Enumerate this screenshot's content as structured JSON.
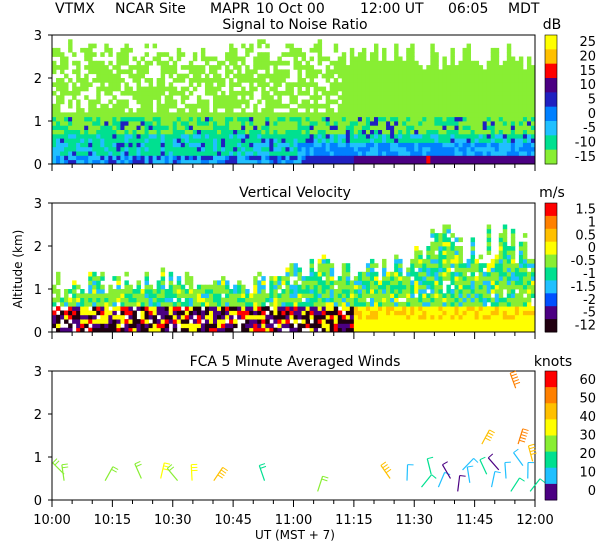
{
  "header": {
    "station": "VTMX",
    "site": "NCAR Site",
    "instrument": "MAPR",
    "date": "10 Oct 00",
    "time_ut": "12:00 UT",
    "time_local": "06:05",
    "tz": "MDT"
  },
  "chart_data": [
    {
      "type": "heatmap",
      "title": "Signal to Noise Ratio",
      "ylabel": "",
      "ylim": [
        0,
        3
      ],
      "yticks": [
        "0",
        "1",
        "2",
        "3"
      ],
      "unit": "dB",
      "colorbar_labels": [
        "25",
        "20",
        "15",
        "10",
        "5",
        "0",
        "-5",
        "-10",
        "-15"
      ],
      "colors": [
        "#ffff00",
        "#ffc000",
        "#ff0000",
        "#4b0082",
        "#2020c0",
        "#0080ff",
        "#20c0ff",
        "#00e090",
        "#88ee33"
      ]
    },
    {
      "type": "heatmap",
      "title": "Vertical Velocity",
      "ylabel": "Altitude (km)",
      "ylim": [
        0,
        3
      ],
      "yticks": [
        "0",
        "1",
        "2",
        "3"
      ],
      "unit": "m/s",
      "colorbar_labels": [
        "1.5",
        "1",
        "0.5",
        "0",
        "-0.5",
        "-1",
        "-1.5",
        "-2",
        "-5",
        "-12"
      ],
      "colors": [
        "#ff0000",
        "#ff8000",
        "#ffc000",
        "#ffff00",
        "#88ee33",
        "#00e090",
        "#20c0ff",
        "#0050ff",
        "#4b0082",
        "#200010"
      ]
    },
    {
      "type": "scatter",
      "title": "FCA 5 Minute Averaged Winds",
      "ylabel": "",
      "ylim": [
        0,
        3
      ],
      "yticks": [
        "0",
        "1",
        "2",
        "3"
      ],
      "unit": "knots",
      "colorbar_labels": [
        "60",
        "50",
        "40",
        "30",
        "20",
        "10",
        "0"
      ],
      "colors": [
        "#ff0000",
        "#ff8000",
        "#ffc000",
        "#ffff00",
        "#88ee33",
        "#00e090",
        "#20c0ff",
        "#4b0082"
      ],
      "x_ticks": [
        "10:00",
        "10:15",
        "10:30",
        "10:45",
        "11:00",
        "11:15",
        "11:30",
        "11:45",
        "12:00"
      ],
      "xlabel": "UT  (MST + 7)",
      "barbs": [
        {
          "t": 10.05,
          "alt": 0.6,
          "speed": 22
        },
        {
          "t": 10.05,
          "alt": 0.45,
          "speed": 24
        },
        {
          "t": 10.22,
          "alt": 0.45,
          "speed": 22
        },
        {
          "t": 10.37,
          "alt": 0.5,
          "speed": 22
        },
        {
          "t": 10.45,
          "alt": 0.5,
          "speed": 26
        },
        {
          "t": 10.52,
          "alt": 0.45,
          "speed": 24
        },
        {
          "t": 10.58,
          "alt": 0.45,
          "speed": 30
        },
        {
          "t": 10.67,
          "alt": 0.45,
          "speed": 40
        },
        {
          "t": 10.88,
          "alt": 0.45,
          "speed": 16
        },
        {
          "t": 11.1,
          "alt": 0.2,
          "speed": 22
        },
        {
          "t": 11.4,
          "alt": 0.5,
          "speed": 40
        },
        {
          "t": 11.47,
          "alt": 0.45,
          "speed": 10
        },
        {
          "t": 11.53,
          "alt": 0.3,
          "speed": 12
        },
        {
          "t": 11.57,
          "alt": 0.6,
          "speed": 14
        },
        {
          "t": 11.6,
          "alt": 0.3,
          "speed": 8
        },
        {
          "t": 11.65,
          "alt": 0.5,
          "speed": 5
        },
        {
          "t": 11.68,
          "alt": 0.2,
          "speed": 5
        },
        {
          "t": 11.7,
          "alt": 0.7,
          "speed": 10
        },
        {
          "t": 11.73,
          "alt": 0.4,
          "speed": 6
        },
        {
          "t": 11.78,
          "alt": 1.3,
          "speed": 40
        },
        {
          "t": 11.8,
          "alt": 0.6,
          "speed": 14
        },
        {
          "t": 11.82,
          "alt": 0.3,
          "speed": 10
        },
        {
          "t": 11.85,
          "alt": 0.7,
          "speed": 4
        },
        {
          "t": 11.88,
          "alt": 0.5,
          "speed": 8
        },
        {
          "t": 11.9,
          "alt": 0.2,
          "speed": 12
        },
        {
          "t": 11.92,
          "alt": 2.6,
          "speed": 45
        },
        {
          "t": 11.93,
          "alt": 1.3,
          "speed": 45
        },
        {
          "t": 11.95,
          "alt": 0.8,
          "speed": 6
        },
        {
          "t": 11.97,
          "alt": 0.5,
          "speed": 10
        },
        {
          "t": 11.98,
          "alt": 0.2,
          "speed": 14
        },
        {
          "t": 11.99,
          "alt": 0.9,
          "speed": 35
        }
      ]
    }
  ]
}
